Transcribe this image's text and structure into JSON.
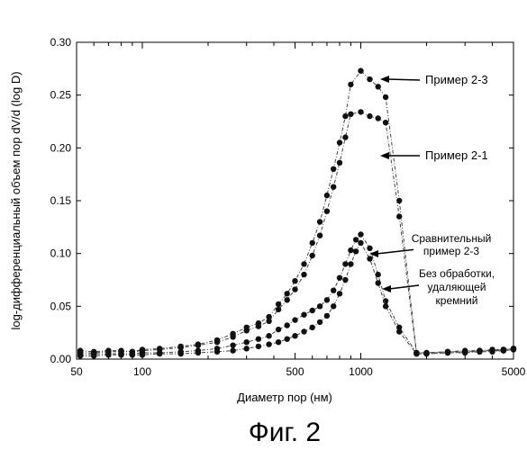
{
  "chart_data": {
    "type": "scatter",
    "xscale": "log",
    "xlim": [
      50,
      5000
    ],
    "ylim": [
      0,
      0.3
    ],
    "xticks": [
      50,
      100,
      500,
      1000,
      5000
    ],
    "xtick_labels": [
      "50",
      "100",
      "500",
      "1000",
      "5000"
    ],
    "yticks": [
      0,
      0.05,
      0.1,
      0.15,
      0.2,
      0.25,
      0.3
    ],
    "ytick_labels": [
      "0.00",
      "0.05",
      "0.10",
      "0.15",
      "0.20",
      "0.25",
      "0.30"
    ],
    "xlabel": "Диаметр пор (нм)",
    "ylabel": "log-дифференциальный объем пор dV/d (log D)",
    "grid": false,
    "series": [
      {
        "name": "Пример 2-3",
        "x": [
          52,
          60,
          70,
          80,
          90,
          100,
          120,
          150,
          180,
          220,
          260,
          300,
          340,
          380,
          420,
          460,
          500,
          550,
          600,
          650,
          700,
          750,
          800,
          850,
          900,
          1000,
          1100,
          1200,
          1300,
          1500,
          1800,
          2000,
          2500,
          3000,
          3500,
          4000,
          4500,
          5000
        ],
        "values": [
          0.008,
          0.007,
          0.008,
          0.008,
          0.007,
          0.009,
          0.01,
          0.012,
          0.014,
          0.018,
          0.024,
          0.03,
          0.034,
          0.04,
          0.052,
          0.062,
          0.074,
          0.09,
          0.11,
          0.13,
          0.155,
          0.18,
          0.205,
          0.23,
          0.26,
          0.273,
          0.265,
          0.258,
          0.248,
          0.15,
          0.006,
          0.006,
          0.007,
          0.008,
          0.008,
          0.009,
          0.009,
          0.01
        ]
      },
      {
        "name": "Пример 2-1",
        "x": [
          52,
          60,
          70,
          80,
          90,
          100,
          120,
          150,
          180,
          220,
          260,
          300,
          340,
          380,
          420,
          460,
          500,
          550,
          600,
          650,
          700,
          750,
          800,
          850,
          900,
          1000,
          1100,
          1200,
          1300,
          1500,
          1800,
          2000,
          2500,
          3000,
          3500,
          4000,
          4500,
          5000
        ],
        "values": [
          0.006,
          0.006,
          0.007,
          0.007,
          0.007,
          0.008,
          0.009,
          0.011,
          0.013,
          0.016,
          0.021,
          0.027,
          0.031,
          0.036,
          0.047,
          0.056,
          0.066,
          0.08,
          0.098,
          0.117,
          0.14,
          0.163,
          0.186,
          0.21,
          0.232,
          0.234,
          0.23,
          0.228,
          0.224,
          0.135,
          0.005,
          0.005,
          0.006,
          0.007,
          0.007,
          0.008,
          0.008,
          0.009
        ]
      },
      {
        "name": "Сравнительный пример 2-3",
        "x": [
          52,
          60,
          70,
          80,
          90,
          100,
          120,
          150,
          180,
          220,
          260,
          300,
          340,
          380,
          420,
          460,
          500,
          550,
          600,
          650,
          700,
          750,
          800,
          850,
          900,
          950,
          1000,
          1100,
          1200,
          1300,
          1500,
          1800,
          2000,
          2500,
          3000,
          3500,
          4000,
          4500,
          5000
        ],
        "values": [
          0.004,
          0.005,
          0.005,
          0.005,
          0.005,
          0.006,
          0.006,
          0.007,
          0.008,
          0.01,
          0.013,
          0.016,
          0.019,
          0.022,
          0.028,
          0.032,
          0.037,
          0.042,
          0.046,
          0.05,
          0.056,
          0.065,
          0.077,
          0.09,
          0.103,
          0.113,
          0.118,
          0.105,
          0.08,
          0.055,
          0.03,
          0.006,
          0.006,
          0.007,
          0.007,
          0.008,
          0.008,
          0.009,
          0.01
        ]
      },
      {
        "name": "Без обработки, удаляющей кремний",
        "x": [
          52,
          60,
          70,
          80,
          90,
          100,
          120,
          150,
          180,
          220,
          260,
          300,
          340,
          380,
          420,
          460,
          500,
          550,
          600,
          650,
          700,
          750,
          800,
          850,
          900,
          950,
          1000,
          1100,
          1200,
          1300,
          1500,
          1800,
          2000,
          2500,
          3000,
          3500,
          4000,
          4500,
          5000
        ],
        "values": [
          0.003,
          0.003,
          0.004,
          0.004,
          0.004,
          0.004,
          0.005,
          0.005,
          0.006,
          0.007,
          0.008,
          0.01,
          0.012,
          0.014,
          0.016,
          0.019,
          0.022,
          0.026,
          0.03,
          0.035,
          0.041,
          0.05,
          0.062,
          0.075,
          0.09,
          0.102,
          0.11,
          0.095,
          0.072,
          0.05,
          0.026,
          0.005,
          0.005,
          0.006,
          0.006,
          0.007,
          0.007,
          0.008,
          0.009
        ]
      }
    ],
    "annotations": [
      {
        "lines": [
          "Пример 2-3"
        ],
        "series": 0
      },
      {
        "lines": [
          "Пример 2-1"
        ],
        "series": 1
      },
      {
        "lines": [
          "Сравнительный",
          "пример 2-3"
        ],
        "series": 2
      },
      {
        "lines": [
          "Без обработки,",
          "удаляющей",
          "кремний"
        ],
        "series": 3
      }
    ]
  },
  "figure_caption": "Фиг. 2"
}
